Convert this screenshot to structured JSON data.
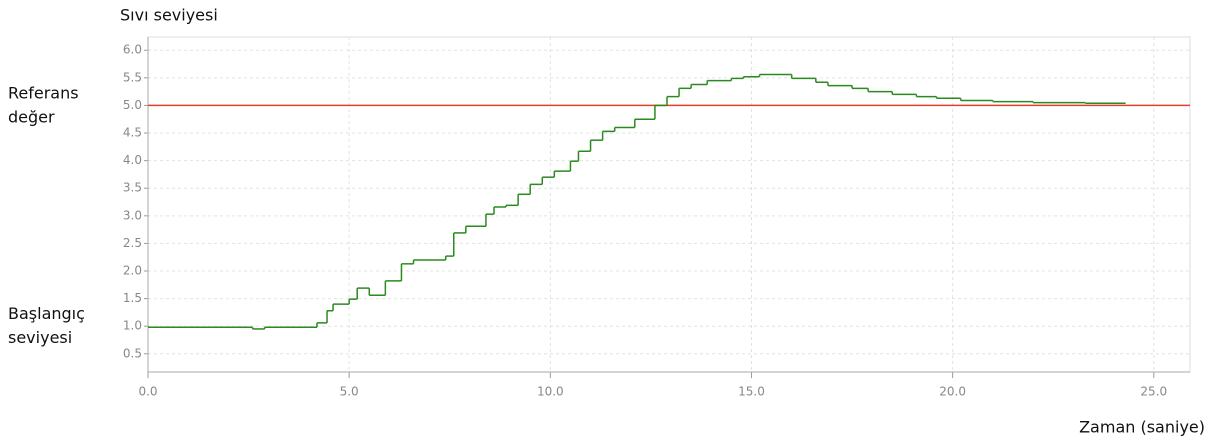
{
  "chart_data": {
    "type": "step",
    "title": "Sıvı seviyesi",
    "xlabel": "Zaman (saniye)",
    "annotations": [
      {
        "text": "Referans değer",
        "y": 5.0
      },
      {
        "text": "Başlangıç seviyesi",
        "y": 1.0
      }
    ],
    "reference_line": {
      "y": 5.0,
      "color": "#e0402a"
    },
    "x": [
      0,
      2.6,
      2.9,
      4.2,
      4.45,
      4.6,
      5.0,
      5.2,
      5.5,
      5.9,
      6.3,
      6.6,
      7.4,
      7.6,
      7.9,
      8.4,
      8.6,
      8.9,
      9.2,
      9.5,
      9.8,
      10.1,
      10.5,
      10.7,
      11.0,
      11.3,
      11.6,
      12.1,
      12.6,
      12.9,
      13.2,
      13.5,
      13.9,
      14.5,
      14.8,
      15.2,
      16.0,
      16.6,
      16.9,
      17.5,
      17.9,
      18.5,
      19.1,
      19.6,
      20.2,
      21.0,
      22.0,
      23.3,
      24.3
    ],
    "series": [
      {
        "name": "Sıvı seviyesi",
        "color": "#2a8a1f",
        "values": [
          0.98,
          0.95,
          0.98,
          1.06,
          1.28,
          1.4,
          1.49,
          1.69,
          1.56,
          1.82,
          2.13,
          2.2,
          2.27,
          2.69,
          2.81,
          3.03,
          3.16,
          3.19,
          3.39,
          3.57,
          3.7,
          3.81,
          3.99,
          4.17,
          4.37,
          4.53,
          4.6,
          4.75,
          5.0,
          5.16,
          5.31,
          5.38,
          5.45,
          5.49,
          5.52,
          5.56,
          5.49,
          5.42,
          5.36,
          5.31,
          5.25,
          5.2,
          5.16,
          5.13,
          5.09,
          5.07,
          5.05,
          5.04,
          5.04
        ]
      }
    ],
    "xlim": [
      0,
      25.9
    ],
    "ylim": [
      0.17,
      6.24
    ],
    "xticks": [
      {
        "value": 0,
        "label": "0.0"
      },
      {
        "value": 5,
        "label": "5.0"
      },
      {
        "value": 10,
        "label": "10.0"
      },
      {
        "value": 15,
        "label": "15.0"
      },
      {
        "value": 20,
        "label": "20.0"
      },
      {
        "value": 25,
        "label": "25.0"
      }
    ],
    "yticks": [
      0.5,
      {
        "value": 1,
        "label": "1.0"
      },
      1.5,
      {
        "value": 2,
        "label": "2.0"
      },
      2.5,
      {
        "value": 3,
        "label": "3.0"
      },
      3.5,
      {
        "value": 4,
        "label": "4.0"
      },
      4.5,
      {
        "value": 5,
        "label": "5.0"
      },
      5.5,
      {
        "value": 6,
        "label": "6.0"
      }
    ],
    "grid": true
  }
}
